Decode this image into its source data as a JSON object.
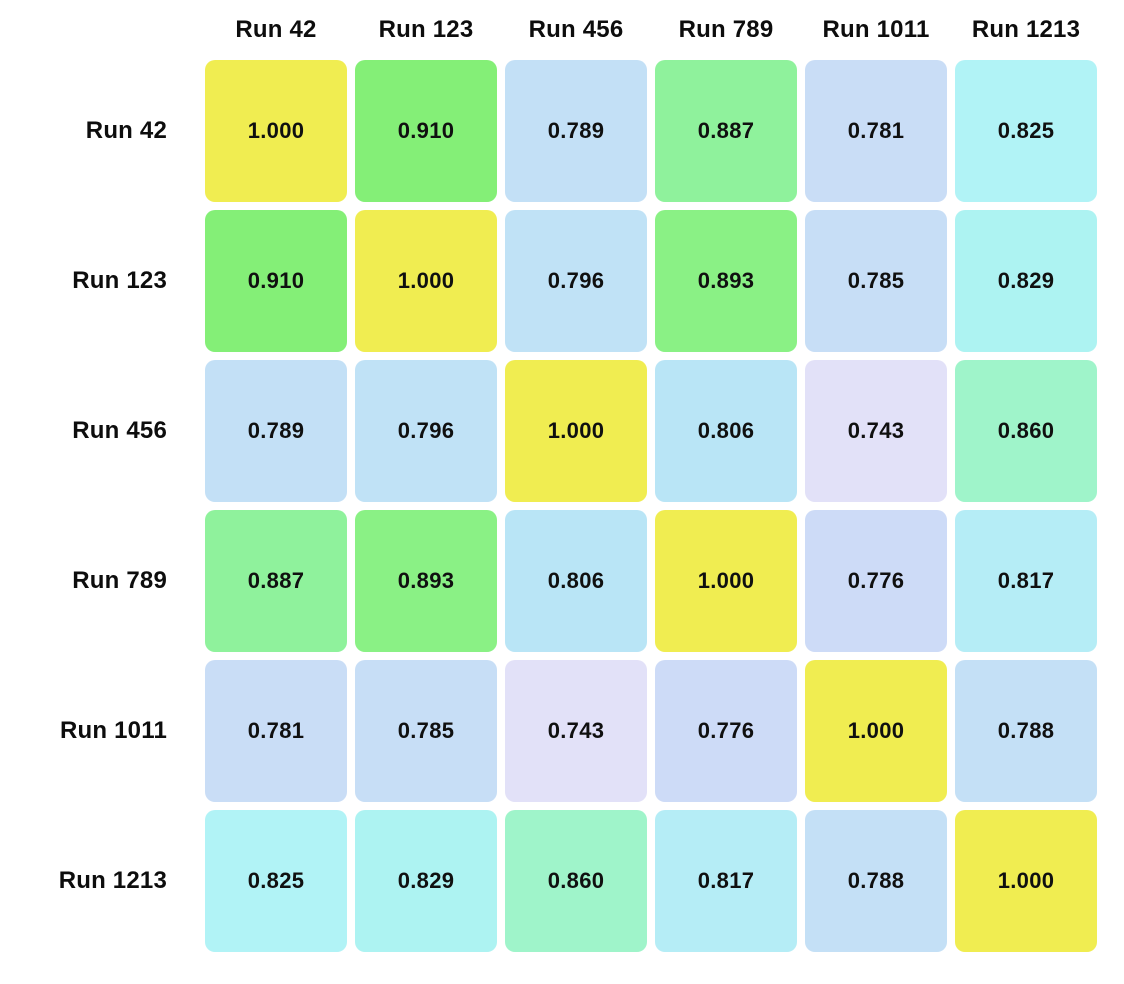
{
  "page": {
    "background": "#ffffff"
  },
  "chart_data": {
    "type": "heatmap",
    "title": "",
    "description": "Pairwise similarity/correlation matrix between runs, values shown to 3 decimals, diagonal = 1.000",
    "categories": [
      "Run 42",
      "Run 123",
      "Run 456",
      "Run 789",
      "Run 1011",
      "Run 1213"
    ],
    "matrix": [
      [
        "1.000",
        "0.910",
        "0.789",
        "0.887",
        "0.781",
        "0.825"
      ],
      [
        "0.910",
        "1.000",
        "0.796",
        "0.893",
        "0.785",
        "0.829"
      ],
      [
        "0.789",
        "0.796",
        "1.000",
        "0.806",
        "0.743",
        "0.860"
      ],
      [
        "0.887",
        "0.893",
        "0.806",
        "1.000",
        "0.776",
        "0.817"
      ],
      [
        "0.781",
        "0.785",
        "0.743",
        "0.776",
        "1.000",
        "0.788"
      ],
      [
        "0.825",
        "0.829",
        "0.860",
        "0.817",
        "0.788",
        "1.000"
      ]
    ],
    "cell_colors": [
      [
        "#f0ed51",
        "#84ef77",
        "#c3e0f6",
        "#8ff29c",
        "#c9ddf6",
        "#b1f3f6"
      ],
      [
        "#84ef77",
        "#f0ed51",
        "#c0e2f6",
        "#8af185",
        "#c7def6",
        "#adf3f2"
      ],
      [
        "#c3e0f6",
        "#c0e2f6",
        "#f0ed51",
        "#b9e5f6",
        "#e2e1f8",
        "#9ff4ca"
      ],
      [
        "#8ff29c",
        "#8af185",
        "#b9e5f6",
        "#f0ed51",
        "#cddbf7",
        "#b5edf6"
      ],
      [
        "#c9ddf6",
        "#c7def6",
        "#e2e1f8",
        "#cddbf7",
        "#f0ed51",
        "#c4e0f6"
      ],
      [
        "#b1f3f6",
        "#adf3f2",
        "#9ff4ca",
        "#b5edf6",
        "#c4e0f6",
        "#f0ed51"
      ]
    ],
    "value_text_color": "#101010",
    "label_text_color": "#0d0d0d",
    "min_value": 0.743,
    "max_value": 1.0,
    "colormap_hint": "pastel rainbow: lavender (low) -> blue -> cyan -> mint -> green -> yellow (high)",
    "legend": "none",
    "grid": "off"
  }
}
